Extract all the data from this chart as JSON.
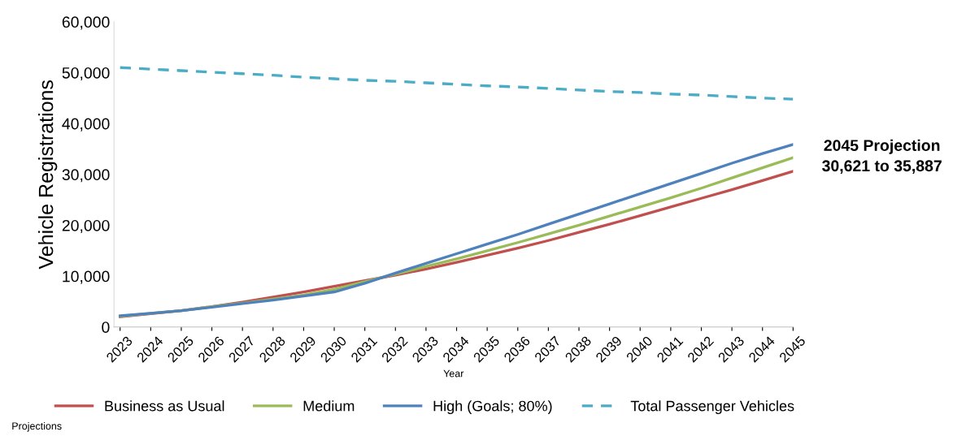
{
  "chart_data": {
    "type": "line",
    "categories": [
      "2023",
      "2024",
      "2025",
      "2026",
      "2027",
      "2028",
      "2029",
      "2030",
      "2031",
      "2032",
      "2033",
      "2034",
      "2035",
      "2036",
      "2037",
      "2038",
      "2039",
      "2040",
      "2041",
      "2042",
      "2043",
      "2044",
      "2045"
    ],
    "series": [
      {
        "name": "Business as Usual",
        "color": "#c0504d",
        "values": [
          2000,
          2600,
          3200,
          4000,
          4900,
          5900,
          6900,
          8000,
          9100,
          10200,
          11400,
          12700,
          14100,
          15500,
          17000,
          18600,
          20200,
          21900,
          23600,
          25300,
          27000,
          28800,
          30600
        ]
      },
      {
        "name": "Medium",
        "color": "#9bbb59",
        "values": [
          2100,
          2700,
          3200,
          4000,
          4700,
          5500,
          6300,
          7400,
          8900,
          10400,
          11900,
          13400,
          15000,
          16600,
          18300,
          20000,
          21800,
          23600,
          25400,
          27300,
          29300,
          31300,
          33300
        ]
      },
      {
        "name": "High (Goals; 80%)",
        "color": "#4f81bd",
        "values": [
          2200,
          2700,
          3200,
          3900,
          4600,
          5300,
          6100,
          6900,
          8600,
          10600,
          12500,
          14400,
          16300,
          18200,
          20200,
          22200,
          24200,
          26200,
          28200,
          30200,
          32200,
          34100,
          35900
        ]
      },
      {
        "name": "Total Passenger Vehicles",
        "color": "#4bacc6",
        "line_style": "dashed",
        "values": [
          51000,
          50700,
          50400,
          50100,
          49800,
          49500,
          49100,
          48800,
          48500,
          48300,
          48000,
          47700,
          47400,
          47200,
          46900,
          46600,
          46300,
          46100,
          45800,
          45600,
          45300,
          45000,
          44800
        ]
      }
    ],
    "xlabel": "Year",
    "ylabel": "Vehicle Registrations",
    "ylim": [
      0,
      60000
    ],
    "yticks": [
      0,
      {
        "value": 10000,
        "label": "10,000"
      },
      {
        "value": 20000,
        "label": "20,000"
      },
      {
        "value": 30000,
        "label": "30,000"
      },
      {
        "value": 40000,
        "label": "40,000"
      },
      {
        "value": 50000,
        "label": "50,000"
      },
      {
        "value": 60000,
        "label": "60,000"
      }
    ],
    "annotations": [
      "2045 Projection\n30,621 to 35,887",
      "Projections"
    ],
    "legend": "bottom",
    "grid": false,
    "line_style": "solid",
    "marker": "none"
  }
}
